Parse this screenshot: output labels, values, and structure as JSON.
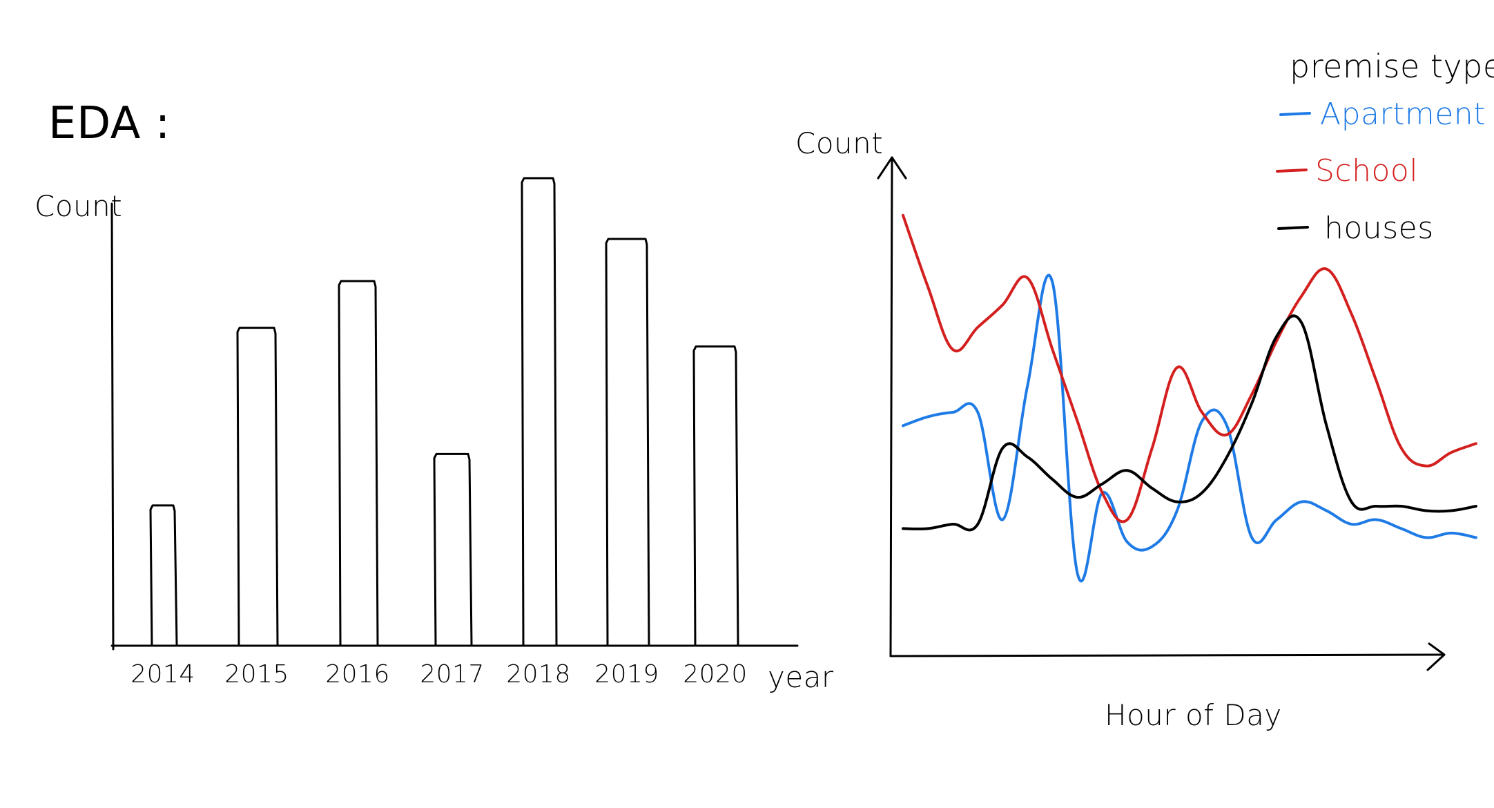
{
  "page_title": "EDA :",
  "chart_data": [
    {
      "type": "bar",
      "title": "",
      "xlabel": "year",
      "ylabel": "Count",
      "categories": [
        "2014",
        "2015",
        "2016",
        "2017",
        "2018",
        "2019",
        "2020"
      ],
      "values": [
        30,
        68,
        78,
        41,
        100,
        87,
        64
      ],
      "ylim": [
        0,
        100
      ],
      "grid": false,
      "bar_style": "outline",
      "bar_color": "#000000"
    },
    {
      "type": "line",
      "title": "",
      "xlabel": "Hour of Day",
      "ylabel": "Count",
      "grid": false,
      "legend": {
        "title": "premise type:",
        "placement": "top-right"
      },
      "x": [
        0,
        1,
        2,
        3,
        4,
        5,
        6,
        7,
        8,
        9,
        10,
        11,
        12,
        13,
        14,
        15,
        16,
        17,
        18,
        19,
        20,
        21,
        22,
        23
      ],
      "xlim": [
        0,
        24
      ],
      "ylim": [
        0,
        100
      ],
      "series": [
        {
          "name": "Apartment",
          "color": "#1e7be6",
          "values": [
            45,
            47,
            48,
            48,
            24,
            54,
            77,
            12,
            30,
            19,
            18,
            26,
            46,
            45,
            20,
            24,
            28,
            26,
            23,
            24,
            22,
            20,
            21,
            20
          ]
        },
        {
          "name": "School",
          "color": "#d41f1f",
          "values": [
            92,
            76,
            62,
            67,
            72,
            78,
            62,
            46,
            30,
            24,
            40,
            58,
            48,
            43,
            52,
            64,
            74,
            80,
            70,
            55,
            40,
            36,
            39,
            41
          ]
        },
        {
          "name": "houses",
          "color": "#000000",
          "values": [
            22,
            22,
            23,
            23,
            40,
            38,
            33,
            29,
            32,
            35,
            31,
            28,
            30,
            38,
            50,
            65,
            68,
            45,
            28,
            27,
            27,
            26,
            26,
            27
          ]
        }
      ]
    }
  ]
}
